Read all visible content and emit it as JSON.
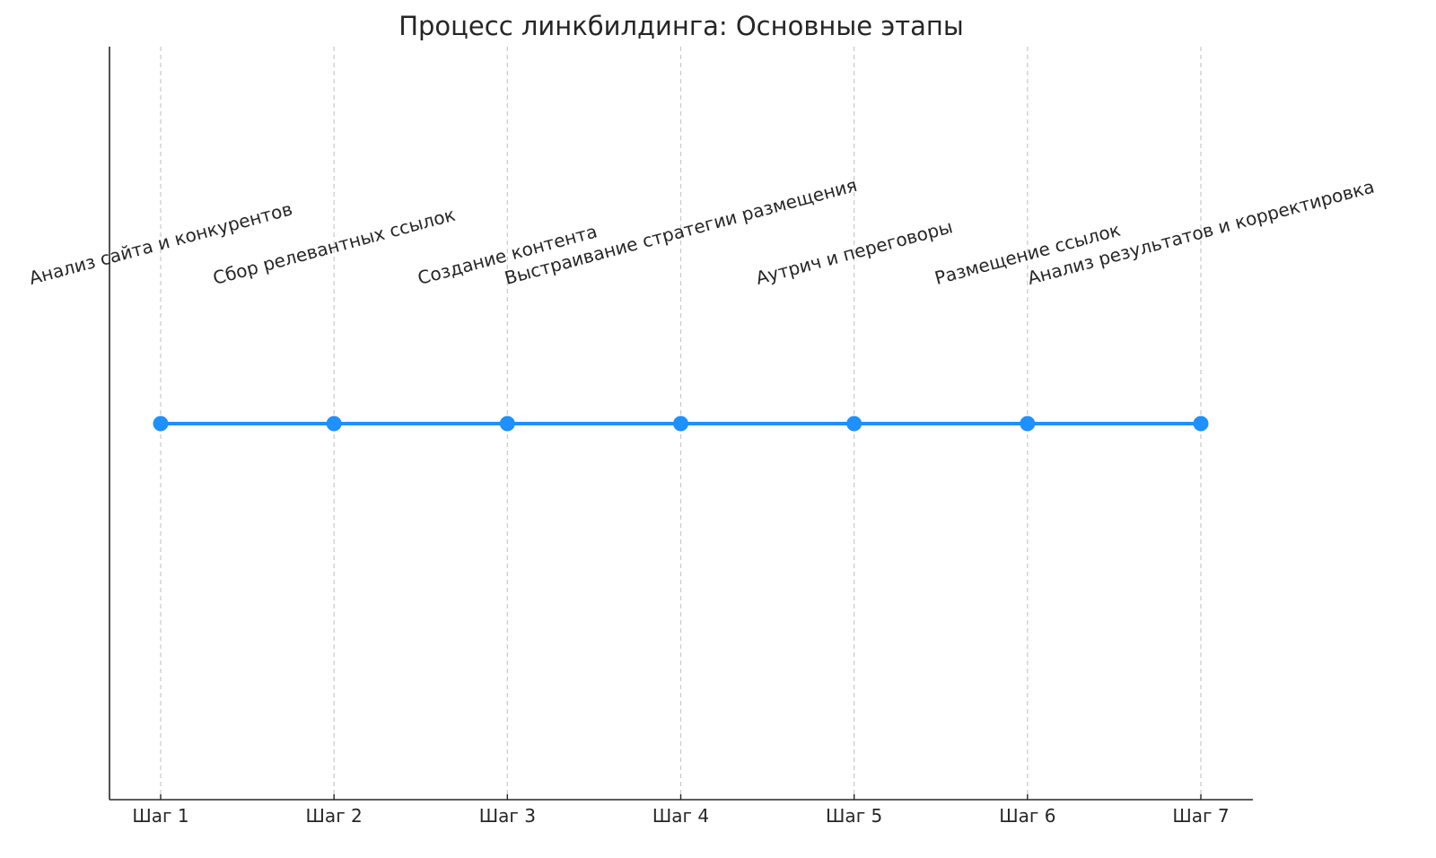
{
  "chart_data": {
    "type": "line",
    "title": "Процесс линкбилдинга: Основные этапы",
    "xlabel": "",
    "ylabel": "",
    "categories": [
      "Шаг 1",
      "Шаг 2",
      "Шаг 3",
      "Шаг 4",
      "Шаг 5",
      "Шаг 6",
      "Шаг 7"
    ],
    "values": [
      1,
      1,
      1,
      1,
      1,
      1,
      1
    ],
    "annotations": [
      "Анализ сайта и конкурентов",
      "Сбор релевантных ссылок",
      "Создание контента",
      "Выстраивание стратегии размещения",
      "Аутрич и переговоры",
      "Размещение ссылок",
      "Анализ результатов и корректировка"
    ],
    "annotation_rotation_deg": 15,
    "grid": "vertical dashed",
    "y_ticks_visible": false,
    "colors": {
      "line": "#1e90ff",
      "grid": "#c8c8c8",
      "axis": "#262626"
    }
  }
}
